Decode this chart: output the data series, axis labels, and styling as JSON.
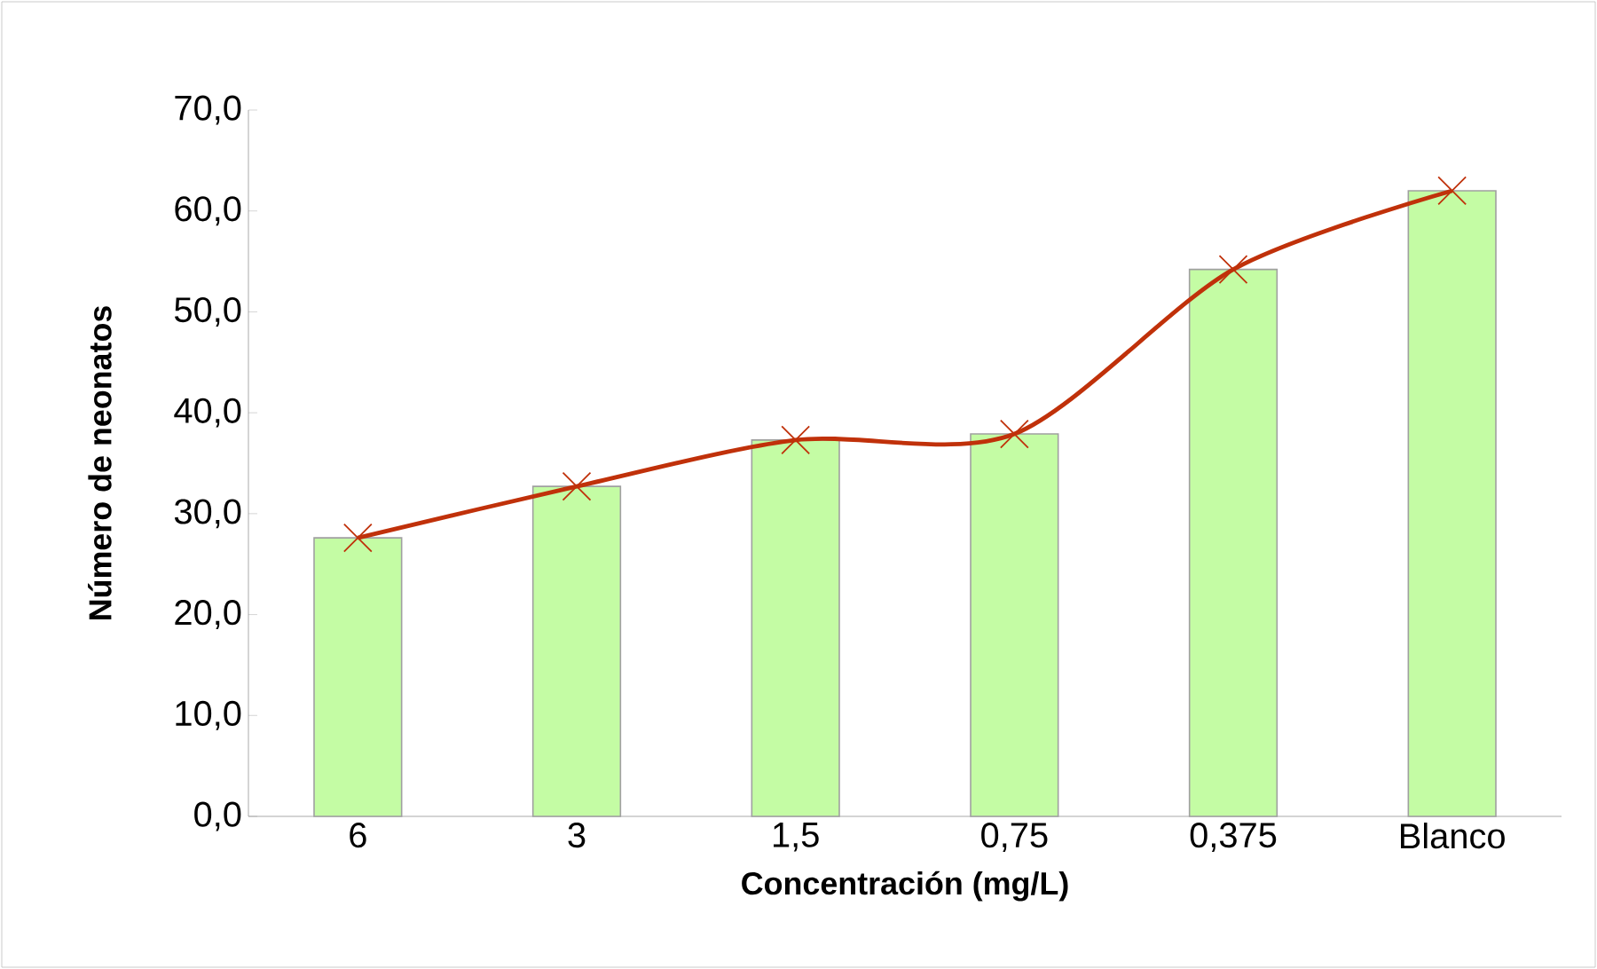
{
  "chart_data": {
    "type": "bar",
    "xlabel": "Concentración (mg/L)",
    "ylabel": "Número de neonatos",
    "categories": [
      "6",
      "3",
      "1,5",
      "0,75",
      "0,375",
      "Blanco"
    ],
    "series": [
      {
        "color": "#c4fca4",
        "values": [
          27.6,
          32.7,
          37.3,
          37.9,
          54.2,
          62.0
        ]
      },
      {
        "type": "line",
        "color": "#c0310a",
        "marker": "cross",
        "line_style": "solid",
        "values": [
          27.6,
          32.7,
          37.3,
          37.9,
          54.2,
          62.0
        ]
      }
    ],
    "ylim": [
      0,
      70
    ],
    "yticks": [
      {
        "value": 0,
        "label": "0,0"
      },
      {
        "value": 10,
        "label": "10,0"
      },
      {
        "value": 20,
        "label": "20,0"
      },
      {
        "value": 30,
        "label": "30,0"
      },
      {
        "value": 40,
        "label": "40,0"
      },
      {
        "value": 50,
        "label": "50,0"
      },
      {
        "value": 60,
        "label": "60,0"
      },
      {
        "value": 70,
        "label": "70,0"
      }
    ],
    "grid": false
  }
}
